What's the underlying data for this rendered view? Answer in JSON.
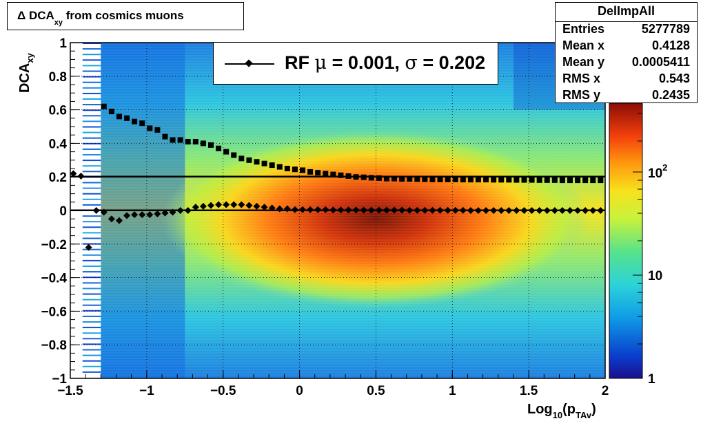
{
  "title": {
    "main": "Δ DCA",
    "sub": "xy",
    "rest": " from cosmics muons"
  },
  "stats": {
    "name": "DelImpAll",
    "rows": [
      {
        "label": "Entries",
        "value": "5277789"
      },
      {
        "label": "Mean x",
        "value": "0.4128"
      },
      {
        "label": "Mean y",
        "value": "0.0005411"
      },
      {
        "label": "RMS x",
        "value": "0.543"
      },
      {
        "label": "RMS y",
        "value": "0.2435"
      }
    ]
  },
  "legend": {
    "prefix": "RF ",
    "mu_symbol": "μ",
    "mu_text": " =  0.001, ",
    "sigma_symbol": "σ",
    "sigma_text": " =   0.202"
  },
  "axes": {
    "ylabel_main": "DCA",
    "ylabel_sub": "xy",
    "xlabel_pre": "Log",
    "xlabel_sub1": "10",
    "xlabel_mid": "(p",
    "xlabel_sub2": "TAv",
    "xlabel_post": ")"
  },
  "chart_data": {
    "type": "heatmap",
    "title": "Δ DCA xy from cosmics muons",
    "xlabel": "Log10(pTAv)",
    "ylabel": "DCAxy",
    "xlim": [
      -1.5,
      2
    ],
    "ylim": [
      -1,
      1
    ],
    "x_ticks": [
      "−1.5",
      "−1",
      "−0.5",
      "0",
      "0.5",
      "1",
      "1.5",
      "2"
    ],
    "y_ticks": [
      "−1",
      "−0.8",
      "−0.6",
      "−0.4",
      "−0.2",
      "0",
      "0.2",
      "0.4",
      "0.6",
      "0.8",
      "1"
    ],
    "colorbar": {
      "scale": "log",
      "labels": [
        "1",
        "10",
        "10^2"
      ]
    },
    "grid": true,
    "series": [
      {
        "name": "RF",
        "marker": "diamond",
        "x": [
          -1.48,
          -1.43,
          -1.38,
          -1.33,
          -1.28,
          -1.23,
          -1.18,
          -1.13,
          -1.08,
          -1.03,
          -0.98,
          -0.93,
          -0.88,
          -0.83,
          -0.78,
          -0.73,
          -0.68,
          -0.63,
          -0.58,
          -0.53,
          -0.48,
          -0.43,
          -0.38,
          -0.33,
          -0.28,
          -0.23,
          -0.18,
          -0.13,
          -0.08,
          -0.03,
          0.02,
          0.07,
          0.12,
          0.17,
          0.22,
          0.27,
          0.32,
          0.37,
          0.42,
          0.47,
          0.52,
          0.57,
          0.62,
          0.67,
          0.72,
          0.77,
          0.82,
          0.87,
          0.92,
          0.97,
          1.02,
          1.07,
          1.12,
          1.17,
          1.22,
          1.27,
          1.32,
          1.37,
          1.42,
          1.47,
          1.52,
          1.57,
          1.62,
          1.67,
          1.72,
          1.77,
          1.82,
          1.87,
          1.92,
          1.97
        ],
        "y": [
          0.22,
          0.205,
          -0.22,
          0.0,
          -0.01,
          -0.05,
          -0.06,
          -0.03,
          -0.025,
          -0.025,
          -0.025,
          -0.02,
          -0.015,
          -0.01,
          0.0,
          0.0,
          0.02,
          0.025,
          0.03,
          0.035,
          0.035,
          0.035,
          0.035,
          0.03,
          0.025,
          0.02,
          0.015,
          0.01,
          0.01,
          0.005,
          0.005,
          0.005,
          0.005,
          0.005,
          0.003,
          0.003,
          0.003,
          0.003,
          0.002,
          0.002,
          0.002,
          0.002,
          0.002,
          0.002,
          0.001,
          0.001,
          0.001,
          0.001,
          0.001,
          0.001,
          0.001,
          0.001,
          0.0,
          0.0,
          0.0,
          0.0,
          0.0,
          0.0,
          0.0,
          0.0,
          0.0,
          0.0,
          0.0,
          0.0,
          0.0,
          0.0,
          0.0,
          0.0,
          0.0,
          0.0
        ]
      },
      {
        "name": "sigma",
        "marker": "square",
        "x": [
          -1.28,
          -1.23,
          -1.18,
          -1.13,
          -1.08,
          -1.03,
          -0.98,
          -0.93,
          -0.88,
          -0.83,
          -0.78,
          -0.73,
          -0.68,
          -0.63,
          -0.58,
          -0.53,
          -0.48,
          -0.43,
          -0.38,
          -0.33,
          -0.28,
          -0.23,
          -0.18,
          -0.13,
          -0.08,
          -0.03,
          0.02,
          0.07,
          0.12,
          0.17,
          0.22,
          0.27,
          0.32,
          0.37,
          0.42,
          0.47,
          0.52,
          0.57,
          0.62,
          0.67,
          0.72,
          0.77,
          0.82,
          0.87,
          0.92,
          0.97,
          1.02,
          1.07,
          1.12,
          1.17,
          1.22,
          1.27,
          1.32,
          1.37,
          1.42,
          1.47,
          1.52,
          1.57,
          1.62,
          1.67,
          1.72,
          1.77,
          1.82,
          1.87,
          1.92,
          1.97
        ],
        "y": [
          0.62,
          0.59,
          0.56,
          0.55,
          0.53,
          0.52,
          0.49,
          0.48,
          0.44,
          0.42,
          0.42,
          0.41,
          0.41,
          0.4,
          0.39,
          0.37,
          0.35,
          0.33,
          0.31,
          0.3,
          0.29,
          0.28,
          0.27,
          0.26,
          0.25,
          0.245,
          0.24,
          0.23,
          0.225,
          0.22,
          0.215,
          0.21,
          0.205,
          0.2,
          0.198,
          0.195,
          0.193,
          0.19,
          0.19,
          0.188,
          0.188,
          0.187,
          0.186,
          0.185,
          0.185,
          0.185,
          0.185,
          0.184,
          0.184,
          0.184,
          0.184,
          0.183,
          0.183,
          0.183,
          0.182,
          0.182,
          0.182,
          0.181,
          0.181,
          0.181,
          0.18,
          0.18,
          0.18,
          0.18,
          0.18,
          0.18
        ]
      }
    ],
    "fit_lines": [
      {
        "name": "mean",
        "y": 0.001
      },
      {
        "name": "sigma",
        "y": 0.202
      }
    ]
  },
  "colors": {
    "frame": "#000000",
    "grid": "#000000"
  }
}
